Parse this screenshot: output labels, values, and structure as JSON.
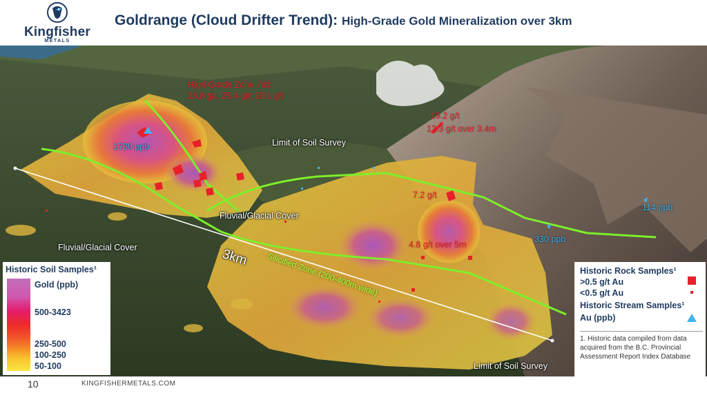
{
  "header": {
    "logo_name": "Kingfisher",
    "logo_sub": "METALS",
    "title_main": "Goldrange (Cloud Drifter Trend):",
    "title_sub": "High-Grade Gold Mineralization over 3km"
  },
  "map_labels": {
    "high_grade_line1": "High Grade Zone incl:",
    "high_grade_line2": "26.8 g/t, 25.4 g/t; 19.1 g/t",
    "stream_1720": "1720 ppb",
    "limit_soil_top": "Limit of Soil Survey",
    "sample_19_2": "19.2 g/t",
    "sample_12_3": "12.3 g/t over 3.4m",
    "sample_7_2": "7.2 g/t",
    "stream_114": "114 ppb",
    "fluvial_center": "Fluvial/Glacial Cover",
    "stream_330": "330 ppb",
    "fluvial_left": "Fluvial/Glacial Cover",
    "silicified": "Silicified Zone (200-400m wide)",
    "distance": "3km",
    "sample_4_8": "4.8 g/t over 5m",
    "limit_soil_bottom": "Limit of Soil Survey"
  },
  "legend_soil": {
    "title": "Historic Soil Samples¹",
    "unit": "Gold (ppb)",
    "range_1": "500-3423",
    "range_2": "250-500",
    "range_3": "100-250",
    "range_4": "50-100"
  },
  "legend_samples": {
    "rock_title": "Historic Rock Samples¹",
    "rock_high": ">0.5 g/t Au",
    "rock_low": "<0.5 g/t Au",
    "stream_title": "Historic Stream Samples¹",
    "stream_unit": "Au (ppb)",
    "note": "1. Historic data compiled from data acquired from the B.C. Provincial Assessment Report Index Database"
  },
  "footer": {
    "page_number": "10",
    "website": "KINGFISHERMETALS.COM"
  },
  "colors": {
    "brand_navy": "#1f3a5f",
    "trend_green": "#7cf02a",
    "rock_red": "#e8202a",
    "stream_blue": "#40b4f0"
  }
}
